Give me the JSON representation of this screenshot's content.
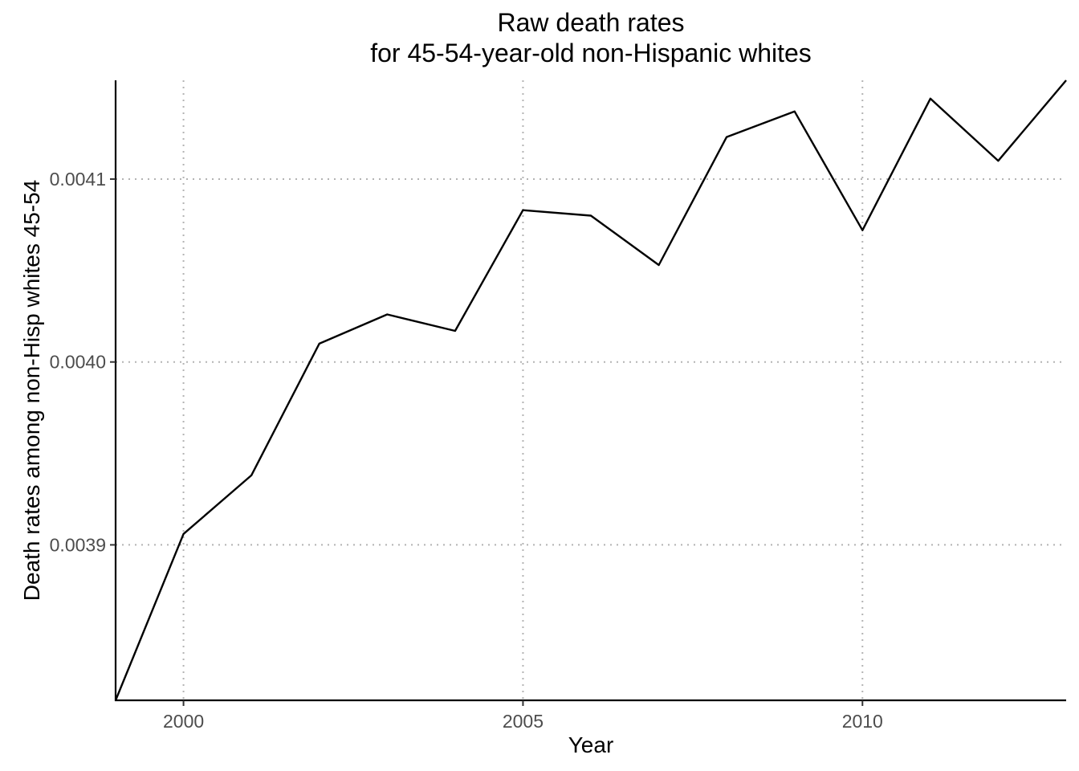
{
  "chart_data": {
    "type": "line",
    "title_lines": [
      "Raw death rates",
      "for 45-54-year-old non-Hispanic whites"
    ],
    "xlabel": "Year",
    "ylabel": "Death rates among non-Hisp whites 45-54",
    "x": [
      1999,
      2000,
      2001,
      2002,
      2003,
      2004,
      2005,
      2006,
      2007,
      2008,
      2009,
      2010,
      2011,
      2012,
      2013
    ],
    "series": [
      {
        "values": [
          0.003815,
          0.003906,
          0.003938,
          0.00401,
          0.004026,
          0.004017,
          0.004083,
          0.00408,
          0.004053,
          0.004123,
          0.004137,
          0.004072,
          0.004144,
          0.00411,
          0.004154
        ],
        "color": "#000000"
      }
    ],
    "xlim": [
      1999,
      2013
    ],
    "ylim": [
      0.003815,
      0.004154
    ],
    "xticks": [
      2000,
      2005,
      2010
    ],
    "xtick_labels": [
      "2000",
      "2005",
      "2010"
    ],
    "yticks": [
      0.0039,
      0.004,
      0.0041
    ],
    "ytick_labels": [
      "0.0039",
      "0.0040",
      "0.0041"
    ],
    "grid": "major, dotted gray",
    "legend": "none"
  }
}
